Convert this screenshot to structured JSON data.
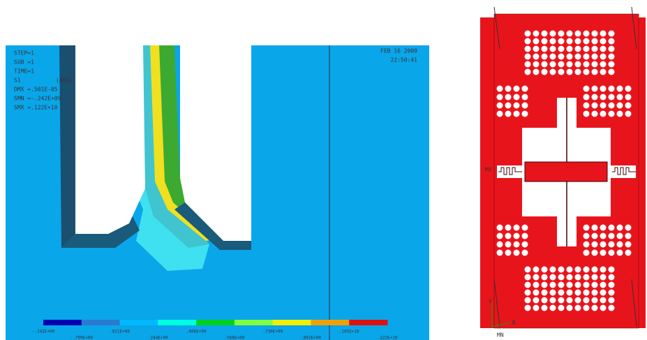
{
  "left_panel": {
    "info": [
      "STEP=1",
      "SUB =1",
      "TIME=1",
      "S1",
      "(AVG)",
      "DMX =.501E-05",
      "SMN =-.242E+09",
      "SMX =.122E+10"
    ],
    "date": "FEB 16 2009",
    "time": "22:50:41",
    "legend_labels": [
      "-.242E+09",
      "-.799E+08",
      ".821E+08",
      ".244E+09",
      ".406E+09",
      ".568E+09",
      ".730E+09",
      ".892E+09",
      ".105E+10",
      ".122E+10"
    ]
  },
  "right_panel": {
    "mx": "MX",
    "mn": "MN",
    "y_axis": "Y",
    "x_axis": "X"
  }
}
